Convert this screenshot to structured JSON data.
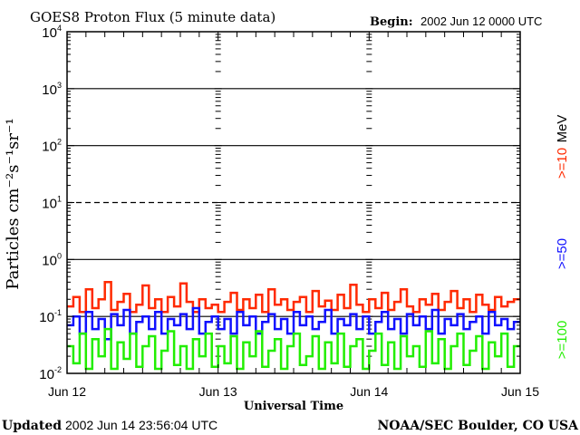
{
  "chart_data": {
    "type": "line",
    "title": "GOES8 Proton Flux (5 minute data)",
    "begin_label": "Begin:",
    "begin_value": "2002 Jun 12 0000 UTC",
    "ylabel": "Particles cm⁻²s⁻¹sr⁻¹",
    "xlabel": "Universal Time",
    "yscale": "log",
    "ylim": [
      0.01,
      10000
    ],
    "ytick_exponents": [
      "4",
      "3",
      "2",
      "1",
      "0",
      "-1",
      "-2"
    ],
    "xlim": [
      "2002-06-12 00:00",
      "2002-06-15 00:00"
    ],
    "xtick_labels": [
      "Jun 12",
      "Jun 13",
      "Jun 14",
      "Jun 15"
    ],
    "unit_label": "MeV",
    "x_hours": [
      0,
      1,
      2,
      3,
      4,
      5,
      6,
      7,
      8,
      9,
      10,
      11,
      12,
      13,
      14,
      15,
      16,
      17,
      18,
      19,
      20,
      21,
      22,
      23,
      24,
      25,
      26,
      27,
      28,
      29,
      30,
      31,
      32,
      33,
      34,
      35,
      36,
      37,
      38,
      39,
      40,
      41,
      42,
      43,
      44,
      45,
      46,
      47,
      48,
      49,
      50,
      51,
      52,
      53,
      54,
      55,
      56,
      57,
      58,
      59,
      60,
      61,
      62,
      63,
      64,
      65,
      66,
      67,
      68,
      69,
      70,
      71
    ],
    "series": [
      {
        "name": ">=10",
        "color": "#ff2a00",
        "values": [
          0.15,
          0.22,
          0.12,
          0.3,
          0.14,
          0.2,
          0.4,
          0.13,
          0.18,
          0.25,
          0.12,
          0.16,
          0.35,
          0.14,
          0.2,
          0.12,
          0.22,
          0.15,
          0.38,
          0.18,
          0.12,
          0.2,
          0.14,
          0.16,
          0.12,
          0.18,
          0.26,
          0.13,
          0.2,
          0.14,
          0.24,
          0.12,
          0.3,
          0.16,
          0.2,
          0.13,
          0.18,
          0.22,
          0.12,
          0.28,
          0.15,
          0.19,
          0.13,
          0.24,
          0.14,
          0.36,
          0.16,
          0.12,
          0.2,
          0.14,
          0.26,
          0.13,
          0.18,
          0.3,
          0.15,
          0.12,
          0.2,
          0.16,
          0.25,
          0.13,
          0.18,
          0.28,
          0.14,
          0.2,
          0.12,
          0.24,
          0.16,
          0.13,
          0.22,
          0.15,
          0.18,
          0.2
        ]
      },
      {
        "name": ">=50",
        "color": "#1010ff",
        "values": [
          0.07,
          0.1,
          0.05,
          0.12,
          0.06,
          0.09,
          0.04,
          0.11,
          0.07,
          0.13,
          0.05,
          0.08,
          0.1,
          0.06,
          0.12,
          0.05,
          0.09,
          0.07,
          0.11,
          0.06,
          0.14,
          0.05,
          0.08,
          0.1,
          0.06,
          0.09,
          0.05,
          0.12,
          0.07,
          0.1,
          0.05,
          0.08,
          0.11,
          0.06,
          0.09,
          0.05,
          0.12,
          0.07,
          0.1,
          0.06,
          0.08,
          0.13,
          0.05,
          0.09,
          0.07,
          0.11,
          0.06,
          0.1,
          0.05,
          0.08,
          0.12,
          0.06,
          0.09,
          0.05,
          0.11,
          0.07,
          0.1,
          0.06,
          0.13,
          0.05,
          0.09,
          0.07,
          0.11,
          0.06,
          0.08,
          0.1,
          0.05,
          0.12,
          0.07,
          0.09,
          0.06,
          0.08
        ]
      },
      {
        "name": ">=100",
        "color": "#22ee00",
        "values": [
          0.03,
          0.015,
          0.05,
          0.012,
          0.04,
          0.02,
          0.06,
          0.012,
          0.035,
          0.018,
          0.05,
          0.013,
          0.03,
          0.045,
          0.012,
          0.025,
          0.055,
          0.014,
          0.03,
          0.012,
          0.04,
          0.02,
          0.05,
          0.013,
          0.03,
          0.015,
          0.045,
          0.012,
          0.035,
          0.02,
          0.055,
          0.013,
          0.025,
          0.04,
          0.012,
          0.03,
          0.05,
          0.014,
          0.02,
          0.045,
          0.012,
          0.035,
          0.015,
          0.05,
          0.013,
          0.03,
          0.04,
          0.012,
          0.025,
          0.05,
          0.014,
          0.035,
          0.012,
          0.045,
          0.02,
          0.03,
          0.013,
          0.055,
          0.015,
          0.04,
          0.012,
          0.03,
          0.05,
          0.014,
          0.025,
          0.045,
          0.012,
          0.035,
          0.02,
          0.05,
          0.013,
          0.03
        ]
      }
    ]
  },
  "footer": {
    "updated_label": "Updated",
    "updated_value": "2002 Jun 14 23:56:04 UTC",
    "source": "NOAA/SEC Boulder, CO USA"
  }
}
